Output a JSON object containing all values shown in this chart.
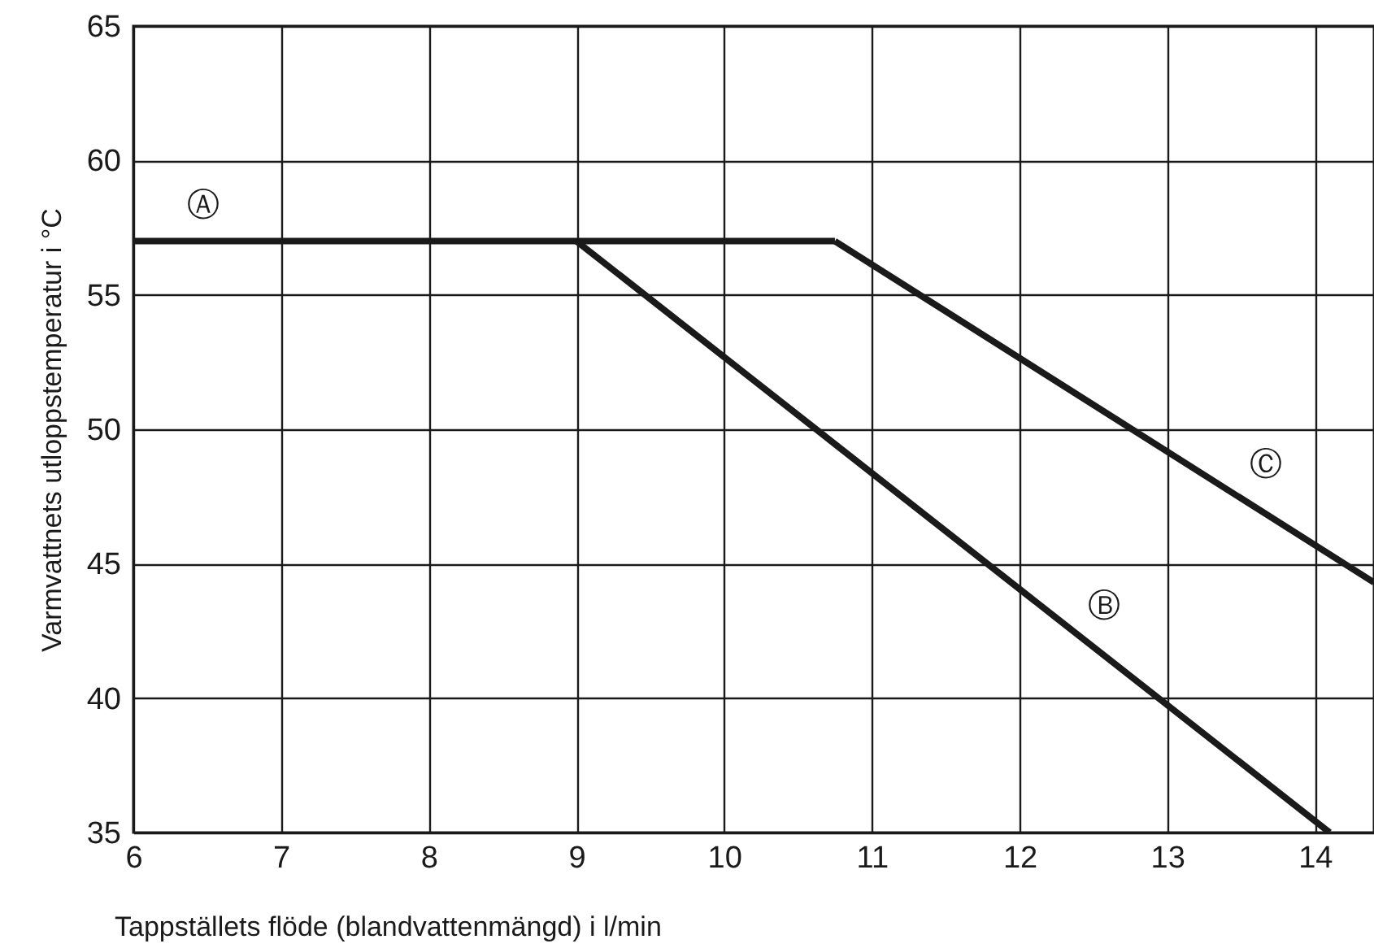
{
  "chart_data": {
    "type": "line",
    "xlabel": "Tappställets flöde (blandvattenmängd) i l/min",
    "ylabel": "Varmvattnets utloppstemperatur i °C",
    "xlim": [
      6,
      14.4
    ],
    "xticks": [
      6,
      7,
      8,
      9,
      10,
      11,
      12,
      13,
      14
    ],
    "ylim": [
      35,
      65
    ],
    "yticks": [
      35,
      40,
      45,
      50,
      55,
      60,
      65
    ],
    "grid": true,
    "line_style": "solid",
    "series": [
      {
        "name": "Ⓐ",
        "color": "#1a1a1a",
        "x": [
          6,
          10.75
        ],
        "values": [
          57,
          57
        ]
      },
      {
        "name": "Ⓑ",
        "color": "#1a1a1a",
        "x": [
          9,
          14.1
        ],
        "values": [
          57,
          35
        ]
      },
      {
        "name": "Ⓒ",
        "color": "#1a1a1a",
        "x": [
          10.75,
          14.4
        ],
        "values": [
          57,
          44.3
        ]
      }
    ]
  }
}
